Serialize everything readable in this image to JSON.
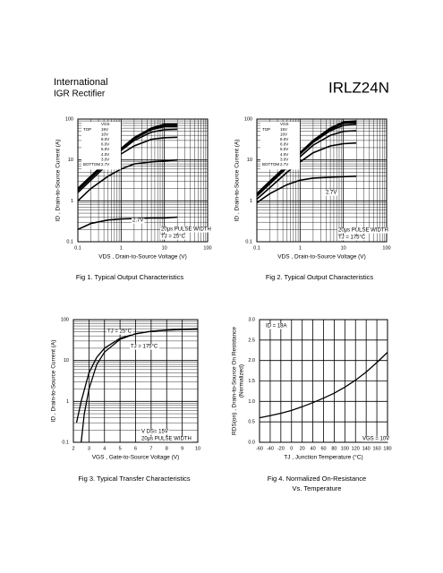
{
  "header": {
    "company_line1": "International",
    "company_line2": "IGR Rectifier",
    "part_number": "IRLZ24N"
  },
  "chart_data": [
    {
      "type": "line",
      "title": "Fig 1.  Typical Output Characteristics",
      "xlabel": "VDS , Drain-to-Source Voltage (V)",
      "ylabel": "ID , Drain-to-Source Current (A)",
      "xscale": "log",
      "yscale": "log",
      "xlim": [
        0.1,
        100
      ],
      "ylim": [
        0.1,
        100
      ],
      "xticks": [
        0.1,
        1,
        10,
        100
      ],
      "yticks": [
        0.1,
        1,
        10,
        100
      ],
      "grid": true,
      "legend_title": "VGS",
      "legend_top_label": "TOP",
      "legend_bottom_label": "BOTTOM",
      "x": [
        0.1,
        0.2,
        0.5,
        1,
        2,
        5,
        10,
        20
      ],
      "series": [
        {
          "name": "15V",
          "color": "#000000",
          "values": [
            2,
            4,
            10,
            19,
            35,
            60,
            75,
            75
          ]
        },
        {
          "name": "10V",
          "color": "#000000",
          "values": [
            2,
            4,
            10,
            19,
            35,
            60,
            73,
            73
          ]
        },
        {
          "name": "8.0V",
          "color": "#000000",
          "values": [
            2,
            4,
            10,
            19,
            34,
            58,
            70,
            70
          ]
        },
        {
          "name": "6.0V",
          "color": "#000000",
          "values": [
            1.9,
            3.8,
            9.5,
            18,
            33,
            55,
            65,
            65
          ]
        },
        {
          "name": "5.0V",
          "color": "#000000",
          "values": [
            1.8,
            3.6,
            9,
            17,
            30,
            48,
            55,
            56
          ]
        },
        {
          "name": "4.0V",
          "color": "#000000",
          "values": [
            1.6,
            3.2,
            8,
            14,
            22,
            32,
            35,
            36
          ]
        },
        {
          "name": "3.0V",
          "color": "#000000",
          "values": [
            1,
            2,
            4,
            6,
            8,
            9,
            9.5,
            10
          ]
        },
        {
          "name": "2.7V",
          "color": "#000000",
          "values": [
            0.2,
            0.28,
            0.34,
            0.36,
            0.37,
            0.38,
            0.38,
            0.4
          ]
        }
      ],
      "annotations": [
        "2.7V",
        "20µs PULSE WIDTH",
        "TJ = 25°C"
      ]
    },
    {
      "type": "line",
      "title": "Fig 2.  Typical Output Characteristics",
      "xlabel": "VDS , Drain-to-Source Voltage (V)",
      "ylabel": "ID , Drain-to-Source Current (A)",
      "xscale": "log",
      "yscale": "log",
      "xlim": [
        0.1,
        100
      ],
      "ylim": [
        0.1,
        100
      ],
      "xticks": [
        0.1,
        1,
        10,
        100
      ],
      "yticks": [
        0.1,
        1,
        10,
        100
      ],
      "grid": true,
      "legend_title": "VGS",
      "legend_top_label": "TOP",
      "legend_bottom_label": "BOTTOM",
      "x": [
        0.1,
        0.2,
        0.5,
        1,
        2,
        5,
        10,
        20
      ],
      "series": [
        {
          "name": "15V",
          "color": "#000000",
          "values": [
            1.5,
            3,
            7.5,
            15,
            30,
            60,
            85,
            90
          ]
        },
        {
          "name": "10V",
          "color": "#000000",
          "values": [
            1.5,
            3,
            7.5,
            15,
            30,
            60,
            84,
            88
          ]
        },
        {
          "name": "8.0V",
          "color": "#000000",
          "values": [
            1.5,
            3,
            7.5,
            15,
            29,
            58,
            82,
            86
          ]
        },
        {
          "name": "6.0V",
          "color": "#000000",
          "values": [
            1.4,
            2.9,
            7.2,
            14,
            28,
            56,
            78,
            82
          ]
        },
        {
          "name": "5.0V",
          "color": "#000000",
          "values": [
            1.4,
            2.8,
            7,
            14,
            27,
            52,
            70,
            75
          ]
        },
        {
          "name": "4.0V",
          "color": "#000000",
          "values": [
            1.3,
            2.6,
            6.5,
            12,
            23,
            40,
            50,
            52
          ]
        },
        {
          "name": "3.0V",
          "color": "#000000",
          "values": [
            1.1,
            2.1,
            5,
            9,
            15,
            22,
            25,
            26
          ]
        },
        {
          "name": "2.7V",
          "color": "#000000",
          "values": [
            0.9,
            1.5,
            2.5,
            3.2,
            3.6,
            3.8,
            3.9,
            4
          ]
        }
      ],
      "annotations": [
        "2.7V",
        "20µs PULSE WIDTH",
        "TJ = 175°C"
      ]
    },
    {
      "type": "line",
      "title": "Fig 3.  Typical Transfer Characteristics",
      "xlabel": "VGS , Gate-to-Source Voltage (V)",
      "ylabel": "ID , Drain-to-Source Current (A)",
      "xscale": "linear",
      "yscale": "log",
      "xlim": [
        2,
        10
      ],
      "ylim": [
        0.1,
        100
      ],
      "xticks": [
        2,
        3,
        4,
        5,
        6,
        7,
        8,
        9,
        10
      ],
      "yticks": [
        0.1,
        1,
        10,
        100
      ],
      "grid": true,
      "series": [
        {
          "x": [
            2.5,
            2.7,
            3,
            3.5,
            4,
            5,
            6,
            7,
            8,
            9,
            10
          ],
          "values": [
            0.1,
            0.5,
            2,
            8,
            16,
            33,
            45,
            52,
            56,
            58,
            60
          ]
        },
        {
          "x": [
            2.2,
            2.5,
            3,
            3.5,
            4,
            5,
            6,
            7,
            8,
            9,
            10
          ],
          "values": [
            0.3,
            1,
            5,
            12,
            20,
            35,
            45,
            52,
            55,
            57,
            58
          ]
        }
      ],
      "annotations": [
        "TJ = 25°C",
        "TJ = 175°C",
        "V DS= 15V",
        "20µs PULSE WIDTH"
      ]
    },
    {
      "type": "line",
      "title": "Fig 4.  Normalized On-Resistance",
      "title2": "Vs. Temperature",
      "xlabel": "TJ , Junction Temperature (°C)",
      "ylabel": "RDS(on) , Drain-to-Source On Resistance",
      "ylabel2": "(Normalized)",
      "xscale": "linear",
      "yscale": "linear",
      "xlim": [
        -60,
        180
      ],
      "ylim": [
        0,
        3
      ],
      "xticks": [
        -60,
        -40,
        -20,
        0,
        20,
        40,
        60,
        80,
        100,
        120,
        140,
        160,
        180
      ],
      "yticks": [
        {
          "value": 0,
          "label": "0.0"
        },
        0.5,
        {
          "value": 1,
          "label": "1.0"
        },
        1.5,
        {
          "value": 2,
          "label": "2.0"
        },
        2.5,
        {
          "value": 3,
          "label": "3.0"
        }
      ],
      "grid": true,
      "series": [
        {
          "x": [
            -60,
            -40,
            -20,
            0,
            20,
            40,
            60,
            80,
            100,
            120,
            140,
            160,
            180
          ],
          "values": [
            0.6,
            0.65,
            0.71,
            0.78,
            0.87,
            0.97,
            1.08,
            1.2,
            1.35,
            1.52,
            1.72,
            1.95,
            2.2
          ]
        }
      ],
      "annotations": [
        "ID = 18A",
        "VGS = 10V"
      ]
    }
  ]
}
